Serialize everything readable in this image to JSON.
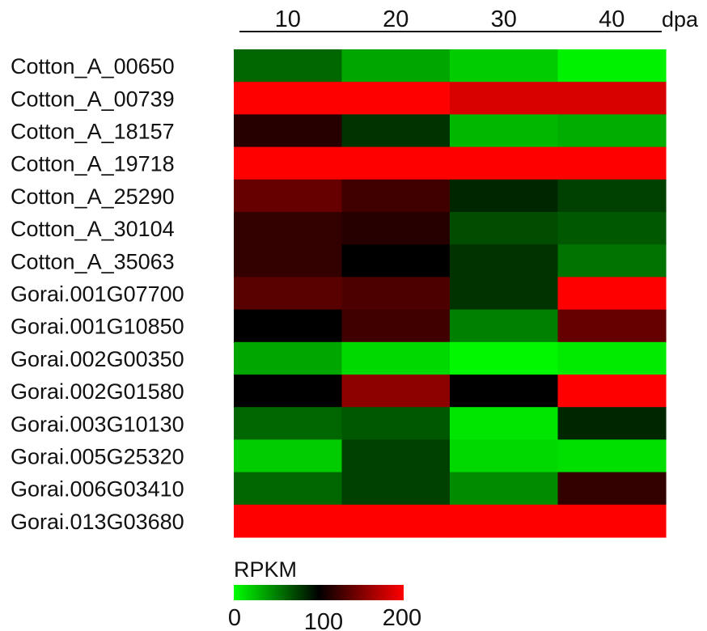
{
  "chart_data": {
    "type": "heatmap",
    "title": "",
    "x_unit_label": "dpa",
    "columns": [
      "10",
      "20",
      "30",
      "40"
    ],
    "rows": [
      "Cotton_A_00650",
      "Cotton_A_00739",
      "Cotton_A_18157",
      "Cotton_A_19718",
      "Cotton_A_25290",
      "Cotton_A_30104",
      "Cotton_A_35063",
      "Gorai.001G07700",
      "Gorai.001G10850",
      "Gorai.002G00350",
      "Gorai.002G01580",
      "Gorai.003G10130",
      "Gorai.005G25320",
      "Gorai.006G03410",
      "Gorai.013G03680"
    ],
    "values": [
      [
        60,
        35,
        20,
        5
      ],
      [
        200,
        200,
        185,
        185
      ],
      [
        115,
        80,
        28,
        32
      ],
      [
        200,
        200,
        200,
        200
      ],
      [
        140,
        125,
        85,
        75
      ],
      [
        120,
        115,
        70,
        65
      ],
      [
        120,
        100,
        80,
        55
      ],
      [
        135,
        130,
        80,
        200
      ],
      [
        100,
        125,
        50,
        140
      ],
      [
        35,
        15,
        3,
        8
      ],
      [
        100,
        155,
        100,
        200
      ],
      [
        60,
        65,
        10,
        85
      ],
      [
        20,
        75,
        15,
        12
      ],
      [
        60,
        75,
        45,
        120
      ],
      [
        200,
        200,
        200,
        200
      ]
    ],
    "colorbar": {
      "title": "RPKM",
      "min": 0,
      "mid": 100,
      "max": 200,
      "ticks": [
        "0",
        "100",
        "200"
      ],
      "colors": {
        "low": "#00ff00",
        "mid": "#000000",
        "high": "#ff0000"
      }
    },
    "legend_position": "bottom-left"
  }
}
